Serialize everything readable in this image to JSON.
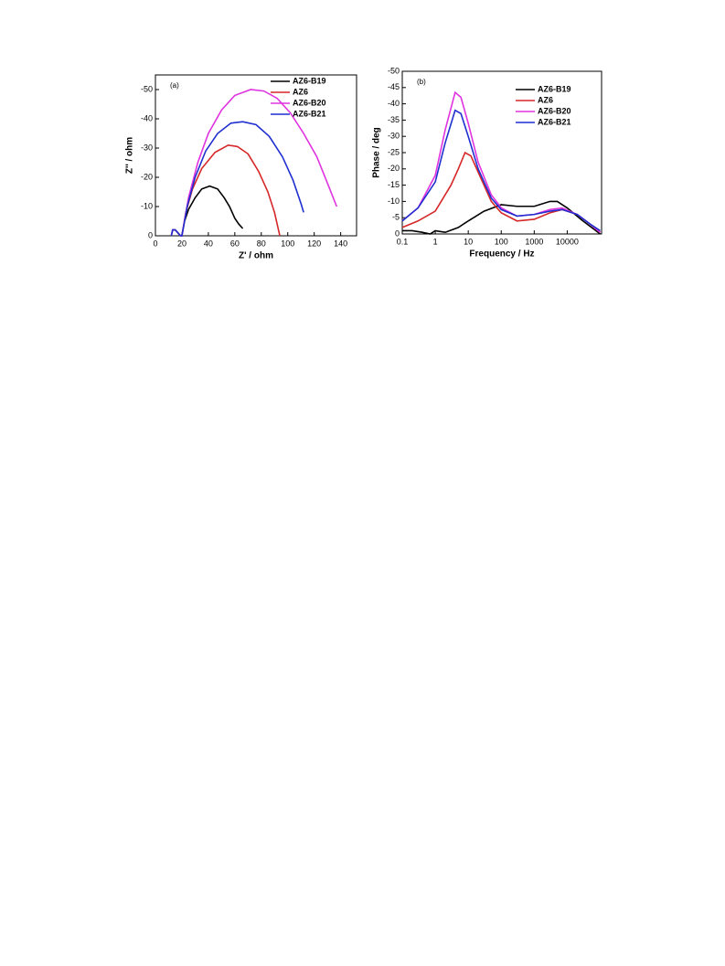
{
  "chart_data": [
    {
      "type": "line",
      "annotation": "(a)",
      "x_label": "Z' / ohm",
      "y_label": "Z'' / ohm",
      "xlim": [
        0,
        152
      ],
      "ylim": [
        0,
        -55
      ],
      "xticks": [
        0,
        20,
        40,
        60,
        80,
        100,
        120,
        140
      ],
      "yticks": [
        0,
        -10,
        -20,
        -30,
        -40,
        -50
      ],
      "legend": "top-right",
      "series": [
        {
          "name": "AZ6-B19",
          "color": "#000000",
          "x": [
            12,
            13,
            15,
            17,
            19,
            20,
            22,
            25,
            30,
            35,
            41,
            47,
            52,
            56,
            60,
            63,
            66
          ],
          "values": [
            0,
            -2,
            -2,
            -1,
            0,
            0,
            -5,
            -9,
            -13,
            -16,
            -17,
            -16,
            -13,
            -10,
            -6,
            -4,
            -2.5
          ]
        },
        {
          "name": "AZ6",
          "color": "#d62728",
          "x": [
            12,
            13,
            15,
            17,
            19,
            20,
            23,
            28,
            35,
            45,
            55,
            62,
            70,
            78,
            85,
            90,
            93,
            94
          ],
          "values": [
            0,
            -2,
            -2,
            -1,
            0,
            0,
            -8,
            -16,
            -23,
            -28.5,
            -31,
            -30.5,
            -28,
            -22,
            -15,
            -8,
            -2,
            0
          ]
        },
        {
          "name": "AZ6-B20",
          "color": "#e033e0",
          "x": [
            12,
            13,
            15,
            17,
            19,
            20,
            25,
            32,
            40,
            50,
            60,
            72,
            82,
            92,
            102,
            112,
            122,
            130,
            137
          ],
          "values": [
            0,
            -2,
            -2,
            -1,
            0,
            0,
            -13,
            -25,
            -35,
            -43,
            -48,
            -50,
            -49.5,
            -47,
            -42,
            -35,
            -27,
            -18,
            -10
          ]
        },
        {
          "name": "AZ6-B21",
          "color": "#1f2fd0",
          "x": [
            12,
            13,
            15,
            17,
            19,
            20,
            24,
            30,
            38,
            47,
            57,
            66,
            76,
            86,
            96,
            104,
            110,
            112
          ],
          "values": [
            0,
            -2,
            -2,
            -1,
            0,
            0,
            -10,
            -20,
            -29,
            -35,
            -38.5,
            -39,
            -38,
            -34,
            -27,
            -19,
            -11,
            -8
          ]
        }
      ]
    },
    {
      "type": "line",
      "annotation": "(b)",
      "x_label": "Frequency / Hz",
      "y_label": "Phase / deg",
      "xscale": "log",
      "xlim": [
        0.1,
        110000
      ],
      "ylim": [
        0,
        -50
      ],
      "xticks": [
        0.1,
        1,
        10,
        100,
        1000,
        10000
      ],
      "yticks": [
        0,
        -5,
        -10,
        -15,
        -20,
        -25,
        -30,
        -35,
        -40,
        -45,
        -50
      ],
      "legend": "top-right",
      "series": [
        {
          "name": "AZ6-B19",
          "color": "#000000",
          "x": [
            0.1,
            0.2,
            0.4,
            0.7,
            1,
            2,
            5,
            10,
            30,
            100,
            300,
            1000,
            3000,
            5000,
            10000,
            30000,
            100000
          ],
          "values": [
            -1,
            -1,
            -0.5,
            0,
            -1,
            -0.5,
            -2,
            -4,
            -7,
            -9,
            -8.5,
            -8.5,
            -10,
            -10,
            -8,
            -4,
            0
          ]
        },
        {
          "name": "AZ6",
          "color": "#d62728",
          "x": [
            0.1,
            0.3,
            1,
            3,
            5,
            8,
            12,
            20,
            50,
            100,
            300,
            1000,
            3000,
            7000,
            20000,
            50000,
            100000
          ],
          "values": [
            -2,
            -4,
            -7,
            -15,
            -20,
            -25,
            -24,
            -19,
            -10,
            -6.5,
            -4,
            -4.5,
            -6.5,
            -7.5,
            -6,
            -3,
            -0.5
          ]
        },
        {
          "name": "AZ6-B20",
          "color": "#e033e0",
          "x": [
            0.1,
            0.3,
            1,
            2,
            4,
            6,
            10,
            20,
            50,
            100,
            300,
            1000,
            3000,
            7000,
            20000,
            50000,
            100000
          ],
          "values": [
            -4,
            -8,
            -18,
            -32,
            -43.5,
            -42,
            -34,
            -22,
            -12,
            -8,
            -5.5,
            -6,
            -7.5,
            -8,
            -6,
            -3,
            -0.5
          ]
        },
        {
          "name": "AZ6-B21",
          "color": "#1f2fd0",
          "x": [
            0.1,
            0.3,
            1,
            2,
            4,
            6,
            10,
            20,
            50,
            100,
            300,
            1000,
            3000,
            7000,
            20000,
            50000,
            100000
          ],
          "values": [
            -4,
            -8,
            -16,
            -28,
            -38,
            -37,
            -30,
            -20,
            -11,
            -7.5,
            -5.5,
            -6,
            -7,
            -7.5,
            -6,
            -3,
            -1
          ]
        }
      ]
    }
  ]
}
